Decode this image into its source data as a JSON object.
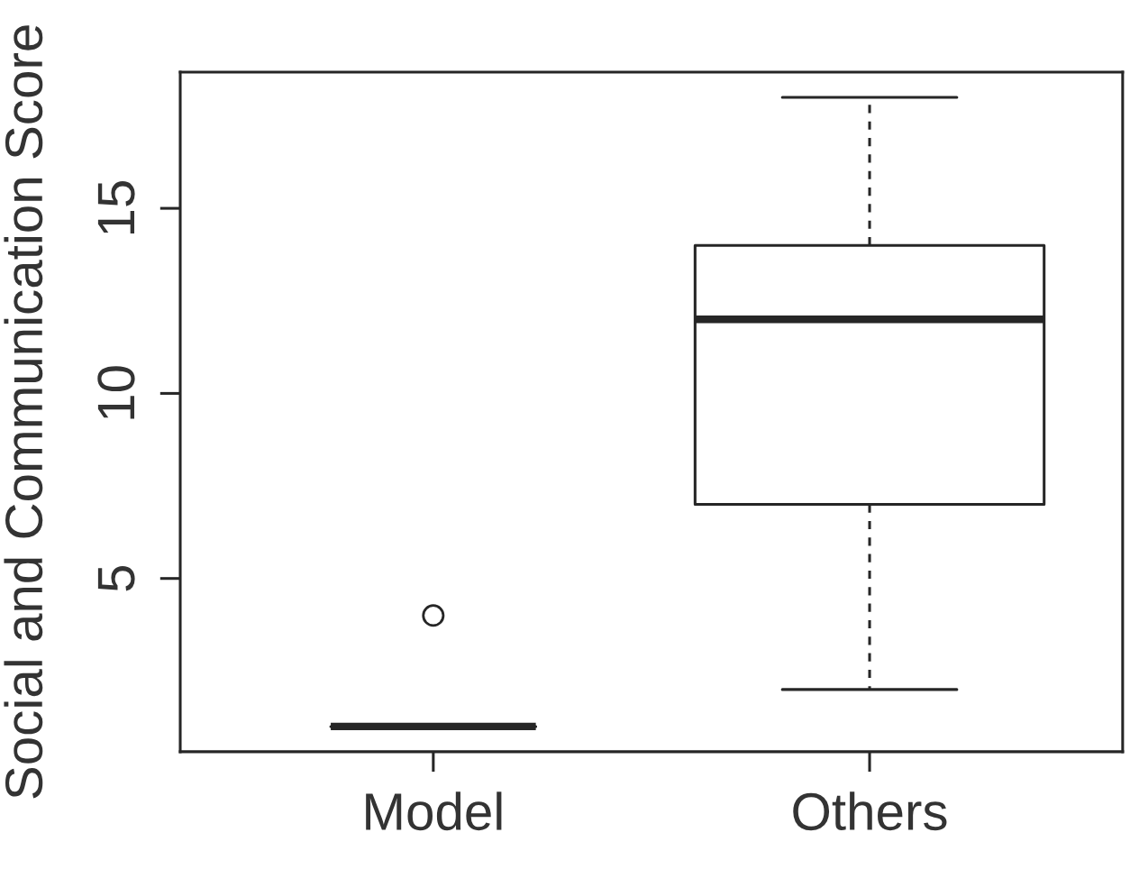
{
  "chart_data": {
    "type": "box",
    "ylabel": "Social and Communication Score",
    "categories": [
      "Model",
      "Others"
    ],
    "boxes": [
      {
        "low": 1,
        "q1": 1,
        "median": 1,
        "q3": 1,
        "high": 1,
        "outliers": [
          4
        ]
      },
      {
        "low": 2,
        "q1": 7,
        "median": 12,
        "q3": 14,
        "high": 18
      }
    ],
    "color": "#262626",
    "ylim": [
      0.32,
      18.68
    ],
    "yticks": [
      5,
      10,
      15
    ],
    "grid": false,
    "legend": false
  }
}
